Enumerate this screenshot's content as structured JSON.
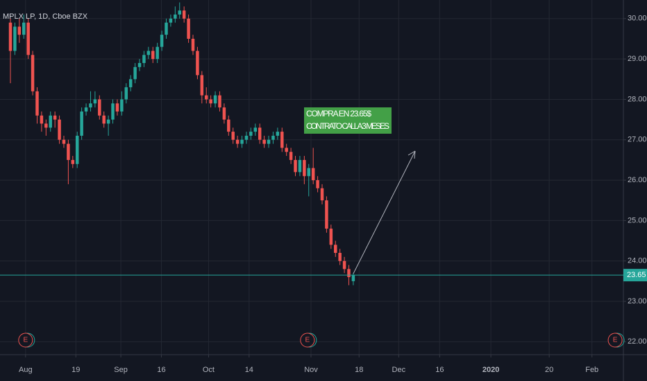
{
  "chart_data": {
    "type": "candlestick",
    "title": "MPLX LP, 1D, Cboe BZX",
    "open": [
      29.9,
      29.2,
      29.8,
      29.6,
      29.9,
      29.1,
      28.2,
      27.6,
      27.4,
      27.3,
      27.6,
      27.5,
      27.0,
      26.9,
      26.5,
      26.4,
      27.1,
      27.7,
      27.8,
      27.9,
      28.0,
      27.6,
      27.4,
      27.5,
      27.9,
      27.7,
      28.0,
      28.3,
      28.5,
      28.8,
      28.9,
      29.1,
      29.2,
      29.0,
      29.3,
      29.6,
      29.9,
      30.0,
      30.1,
      30.2,
      30.0,
      29.5,
      29.2,
      28.6,
      28.1,
      28.0,
      27.9,
      28.1,
      27.8,
      27.5,
      27.2,
      27.0,
      26.9,
      27.0,
      27.1,
      27.2,
      27.3,
      27.0,
      26.9,
      27.0,
      27.1,
      27.2,
      26.8,
      26.7,
      26.5,
      26.2,
      26.5,
      26.1,
      26.3,
      26.0,
      25.8,
      25.5,
      24.8,
      24.4,
      24.2,
      24.0,
      23.8,
      23.5
    ],
    "high": [
      30.0,
      29.9,
      30.0,
      30.1,
      30.0,
      29.2,
      28.3,
      27.7,
      27.5,
      27.7,
      27.7,
      27.6,
      27.1,
      27.0,
      26.6,
      27.2,
      27.8,
      27.9,
      28.2,
      28.2,
      28.1,
      27.7,
      27.6,
      28.0,
      28.0,
      28.2,
      28.4,
      28.6,
      28.9,
      29.0,
      29.2,
      29.3,
      29.3,
      29.4,
      29.7,
      30.0,
      30.1,
      30.3,
      30.4,
      30.3,
      30.1,
      29.6,
      29.3,
      28.7,
      28.3,
      28.1,
      28.2,
      28.2,
      27.9,
      27.6,
      27.3,
      27.1,
      27.1,
      27.2,
      27.3,
      27.4,
      27.4,
      27.1,
      27.1,
      27.2,
      27.3,
      27.3,
      26.9,
      26.8,
      26.6,
      26.6,
      26.6,
      26.4,
      26.8,
      26.1,
      25.9,
      25.6,
      24.9,
      24.5,
      24.3,
      24.1,
      23.9,
      23.7
    ],
    "low": [
      28.4,
      29.1,
      29.4,
      29.5,
      29.0,
      28.1,
      27.4,
      27.2,
      27.1,
      27.2,
      27.3,
      26.9,
      26.8,
      25.9,
      26.3,
      26.3,
      27.0,
      27.6,
      27.7,
      27.8,
      27.5,
      27.3,
      27.1,
      27.4,
      27.6,
      27.6,
      27.9,
      28.2,
      28.4,
      28.7,
      28.8,
      29.0,
      28.9,
      28.9,
      29.2,
      29.5,
      29.8,
      29.9,
      30.0,
      29.9,
      29.4,
      29.1,
      28.5,
      27.9,
      27.9,
      27.8,
      27.8,
      27.7,
      27.4,
      27.1,
      26.9,
      26.8,
      26.8,
      26.9,
      27.0,
      27.1,
      26.9,
      26.8,
      26.8,
      26.9,
      27.0,
      26.7,
      26.6,
      26.4,
      26.1,
      26.1,
      25.9,
      25.6,
      25.9,
      25.7,
      25.4,
      24.7,
      24.3,
      24.1,
      23.9,
      23.7,
      23.4,
      23.4
    ],
    "close": [
      29.2,
      29.8,
      29.6,
      29.9,
      29.1,
      28.2,
      27.6,
      27.4,
      27.3,
      27.6,
      27.5,
      27.0,
      26.9,
      26.5,
      26.4,
      27.1,
      27.7,
      27.8,
      27.9,
      28.0,
      27.6,
      27.4,
      27.5,
      27.9,
      27.7,
      28.0,
      28.3,
      28.5,
      28.8,
      28.9,
      29.1,
      29.2,
      29.0,
      29.3,
      29.6,
      29.9,
      30.0,
      30.1,
      30.2,
      30.0,
      29.5,
      29.2,
      28.6,
      28.1,
      28.0,
      27.9,
      28.1,
      27.8,
      27.5,
      27.2,
      27.0,
      26.9,
      27.0,
      27.1,
      27.2,
      27.3,
      27.0,
      26.9,
      27.0,
      27.1,
      27.2,
      26.8,
      26.7,
      26.5,
      26.2,
      26.5,
      26.1,
      26.3,
      26.0,
      25.8,
      25.5,
      24.8,
      24.4,
      24.2,
      24.0,
      23.8,
      23.6,
      23.65
    ],
    "up_color": "#26a69a",
    "down_color": "#ef5350",
    "ylim": [
      21.68,
      30.46
    ],
    "yticks": [
      {
        "value": 22,
        "label": "22.00"
      },
      {
        "value": 23,
        "label": "23.00"
      },
      {
        "value": 24,
        "label": "24.00"
      },
      {
        "value": 25,
        "label": "25.00"
      },
      {
        "value": 26,
        "label": "26.00"
      },
      {
        "value": 27,
        "label": "27.00"
      },
      {
        "value": 28,
        "label": "28.00"
      },
      {
        "value": 29,
        "label": "29.00"
      },
      {
        "value": 30,
        "label": "30.00"
      }
    ],
    "xlim": [
      -2.34,
      137.66
    ],
    "xticks": [
      {
        "value": 3.4,
        "label": "Aug"
      },
      {
        "value": 14.7,
        "label": "19"
      },
      {
        "value": 24.8,
        "label": "Sep"
      },
      {
        "value": 33.9,
        "label": "16"
      },
      {
        "value": 44.5,
        "label": "Oct"
      },
      {
        "value": 53.6,
        "label": "14"
      },
      {
        "value": 67.5,
        "label": "Nov"
      },
      {
        "value": 78.3,
        "label": "18"
      },
      {
        "value": 87.2,
        "label": "Dec"
      },
      {
        "value": 96.4,
        "label": "16"
      },
      {
        "value": 107.9,
        "label": "2020"
      },
      {
        "value": 121,
        "label": "20"
      },
      {
        "value": 130.6,
        "label": "Feb"
      }
    ],
    "grid": true,
    "price_line": {
      "value": 23.65,
      "color": "#26a69a"
    },
    "events": [
      {
        "label": "E",
        "x": 3.4
      },
      {
        "label": "E",
        "x": 66.7
      },
      {
        "label": "E",
        "x": 135.8
      }
    ],
    "annotation": [
      "COMPRA EN 23.65$",
      "CONTRATO CALL A 3 MESES"
    ]
  }
}
